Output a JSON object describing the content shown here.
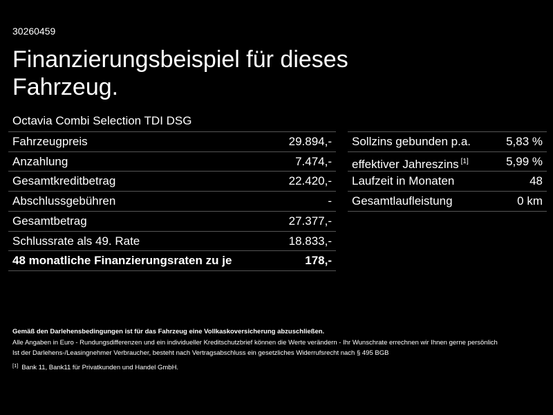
{
  "header": {
    "id": "30260459",
    "title": "Finanzierungsbeispiel für dieses Fahrzeug.",
    "subtitle": "Octavia Combi Selection TDI DSG"
  },
  "left_table": {
    "rows": [
      {
        "label": "Fahrzeugpreis",
        "value": "29.894,-"
      },
      {
        "label": "Anzahlung",
        "value": "7.474,-"
      },
      {
        "label": "Gesamtkreditbetrag",
        "value": "22.420,-"
      },
      {
        "label": "Abschlussgebühren",
        "value": "-"
      },
      {
        "label": "Gesamtbetrag",
        "value": "27.377,-"
      },
      {
        "label": "Schlussrate als 49. Rate",
        "value": "18.833,-"
      }
    ],
    "total_row": {
      "label": "48 monatliche Finanzierungsraten zu je",
      "value": "178,-"
    }
  },
  "right_table": {
    "rows": [
      {
        "label": "Sollzins gebunden p.a.",
        "value": "5,83 %"
      },
      {
        "label": "effektiver Jahreszins",
        "note": "[1]",
        "value": "5,99 %"
      },
      {
        "label": "Laufzeit in Monaten",
        "value": "48"
      },
      {
        "label": "Gesamtlaufleistung",
        "value": "0 km"
      }
    ]
  },
  "footer": {
    "notice": "Gemäß den Darlehensbedingungen ist für das Fahrzeug eine Vollkaskoversicherung abzuschließen.",
    "lines": [
      "Alle Angaben in Euro - Rundungsdifferenzen und ein individueller Kreditschutzbrief können die Werte verändern - Ihr Wunschrate errechnen wir Ihnen gerne persönlich",
      "Ist der Darlehens-/Leasingnehmer Verbraucher, besteht nach Vertragsabschluss ein gesetzliches Widerrufsrecht nach § 495 BGB"
    ],
    "footnote": {
      "marker": "[1]",
      "text": "Bank 11, Bank11 für Privatkunden und Handel GmbH."
    }
  }
}
